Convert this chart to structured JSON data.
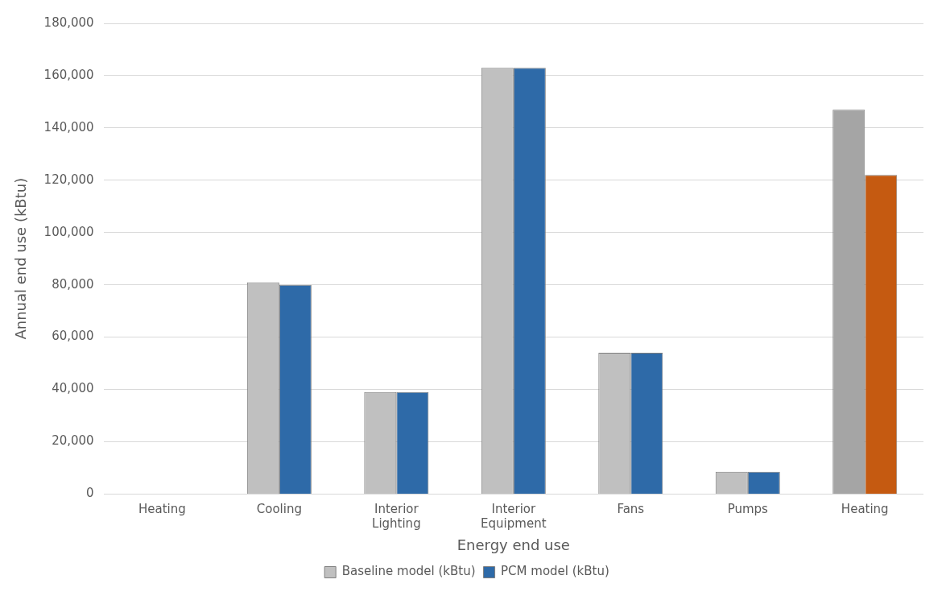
{
  "chart_data": {
    "type": "bar",
    "xlabel": "Energy end use",
    "ylabel": "Annual end use (kBtu)",
    "categories": [
      "Heating",
      "Cooling",
      "Interior Lighting",
      "Interior Equipment",
      "Fans",
      "Pumps",
      "Heating"
    ],
    "series": [
      {
        "name": "Baseline model (kBtu)",
        "color": "#c0c0c0",
        "colors": [
          "#c0c0c0",
          "#c0c0c0",
          "#c0c0c0",
          "#c0c0c0",
          "#c0c0c0",
          "#c0c0c0",
          "#a5a5a5"
        ],
        "values": [
          0,
          81000,
          39000,
          163000,
          54000,
          8500,
          147000
        ]
      },
      {
        "name": "PCM model (kBtu)",
        "color": "#2e6aa8",
        "colors": [
          "#2e6aa8",
          "#2e6aa8",
          "#2e6aa8",
          "#2e6aa8",
          "#2e6aa8",
          "#2e6aa8",
          "#c55a11"
        ],
        "values": [
          0,
          80000,
          39000,
          163000,
          54000,
          8500,
          122000
        ]
      }
    ],
    "ylim": [
      0,
      180000
    ],
    "yticks": [
      0,
      {
        "value": 20000,
        "label": "20,000"
      },
      {
        "value": 40000,
        "label": "40,000"
      },
      {
        "value": 60000,
        "label": "60,000"
      },
      {
        "value": 80000,
        "label": "80,000"
      },
      {
        "value": 100000,
        "label": "100,000"
      },
      {
        "value": 120000,
        "label": "120,000"
      },
      {
        "value": 140000,
        "label": "140,000"
      },
      {
        "value": 160000,
        "label": "160,000"
      },
      {
        "value": 180000,
        "label": "180,000"
      }
    ],
    "grid": "y",
    "legend": "bottom"
  }
}
